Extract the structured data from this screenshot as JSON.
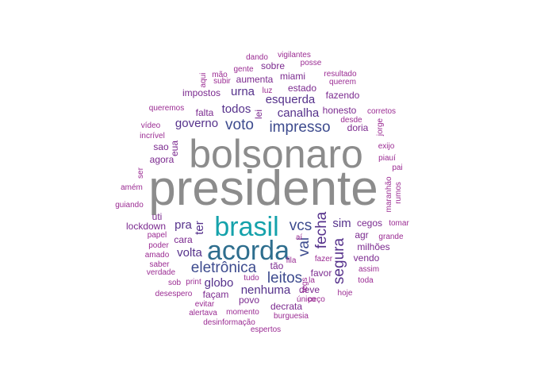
{
  "chart_data": {
    "type": "wordcloud",
    "palette": {
      "gray": "#8c8c8c",
      "teal": "#15a2ab",
      "blue": "#2e6e8e",
      "indigo": "#3d4b8e",
      "purple": "#55318b",
      "violet": "#7b2a8f",
      "magenta": "#9b2c93"
    },
    "words": [
      {
        "text": "presidente",
        "color": "gray",
        "tier": 1
      },
      {
        "text": "bolsonaro",
        "color": "gray",
        "tier": 2
      },
      {
        "text": "acorda",
        "color": "blue",
        "tier": 3
      },
      {
        "text": "brasil",
        "color": "teal",
        "tier": 3
      },
      {
        "text": "impresso",
        "color": "indigo",
        "tier": 4
      },
      {
        "text": "eletrônica",
        "color": "indigo",
        "tier": 4
      },
      {
        "text": "leitos",
        "color": "indigo",
        "tier": 4
      },
      {
        "text": "vcs",
        "color": "indigo",
        "tier": 4
      },
      {
        "text": "voto",
        "color": "indigo",
        "tier": 4
      },
      {
        "text": "vai",
        "color": "indigo",
        "tier": 4
      },
      {
        "text": "fecha",
        "color": "purple",
        "tier": 4
      },
      {
        "text": "segura",
        "color": "purple",
        "tier": 4
      },
      {
        "text": "nenhuma",
        "color": "purple",
        "tier": 5
      },
      {
        "text": "canalha",
        "color": "purple",
        "tier": 5
      },
      {
        "text": "esquerda",
        "color": "purple",
        "tier": 5
      },
      {
        "text": "governo",
        "color": "purple",
        "tier": 5
      },
      {
        "text": "todos",
        "color": "purple",
        "tier": 5
      },
      {
        "text": "urna",
        "color": "purple",
        "tier": 5
      },
      {
        "text": "volta",
        "color": "purple",
        "tier": 5
      },
      {
        "text": "globo",
        "color": "purple",
        "tier": 5
      },
      {
        "text": "pra",
        "color": "purple",
        "tier": 5
      },
      {
        "text": "sim",
        "color": "purple",
        "tier": 5
      },
      {
        "text": "ter",
        "color": "purple",
        "tier": 5
      },
      {
        "text": "estado",
        "color": "violet",
        "tier": 6
      },
      {
        "text": "falta",
        "color": "violet",
        "tier": 6
      },
      {
        "text": "cara",
        "color": "violet",
        "tier": 6
      },
      {
        "text": "miami",
        "color": "violet",
        "tier": 6
      },
      {
        "text": "fazendo",
        "color": "violet",
        "tier": 6
      },
      {
        "text": "impostos",
        "color": "violet",
        "tier": 6
      },
      {
        "text": "aumenta",
        "color": "violet",
        "tier": 6
      },
      {
        "text": "sobre",
        "color": "violet",
        "tier": 6
      },
      {
        "text": "honesto",
        "color": "violet",
        "tier": 6
      },
      {
        "text": "doria",
        "color": "violet",
        "tier": 6
      },
      {
        "text": "agora",
        "color": "violet",
        "tier": 6
      },
      {
        "text": "sao",
        "color": "violet",
        "tier": 6
      },
      {
        "text": "eua",
        "color": "violet",
        "tier": 6
      },
      {
        "text": "cegos",
        "color": "violet",
        "tier": 6
      },
      {
        "text": "agr",
        "color": "violet",
        "tier": 6
      },
      {
        "text": "milhões",
        "color": "violet",
        "tier": 6
      },
      {
        "text": "vendo",
        "color": "violet",
        "tier": 6
      },
      {
        "text": "favor",
        "color": "violet",
        "tier": 6
      },
      {
        "text": "deve",
        "color": "violet",
        "tier": 6
      },
      {
        "text": "decrata",
        "color": "violet",
        "tier": 6
      },
      {
        "text": "povo",
        "color": "violet",
        "tier": 6
      },
      {
        "text": "façam",
        "color": "violet",
        "tier": 6
      },
      {
        "text": "lockdown",
        "color": "violet",
        "tier": 6
      },
      {
        "text": "uti",
        "color": "violet",
        "tier": 6
      },
      {
        "text": "tão",
        "color": "violet",
        "tier": 6
      },
      {
        "text": "lei",
        "color": "violet",
        "tier": 6
      },
      {
        "text": "dando",
        "color": "magenta",
        "tier": 7
      },
      {
        "text": "vigilantes",
        "color": "magenta",
        "tier": 7
      },
      {
        "text": "posse",
        "color": "magenta",
        "tier": 7
      },
      {
        "text": "gente",
        "color": "magenta",
        "tier": 7
      },
      {
        "text": "resultado",
        "color": "magenta",
        "tier": 7
      },
      {
        "text": "mão",
        "color": "magenta",
        "tier": 7
      },
      {
        "text": "aqui",
        "color": "magenta",
        "tier": 7
      },
      {
        "text": "subir",
        "color": "magenta",
        "tier": 7
      },
      {
        "text": "querem",
        "color": "magenta",
        "tier": 7
      },
      {
        "text": "luz",
        "color": "magenta",
        "tier": 7
      },
      {
        "text": "queremos",
        "color": "magenta",
        "tier": 7
      },
      {
        "text": "corretos",
        "color": "magenta",
        "tier": 7
      },
      {
        "text": "desde",
        "color": "magenta",
        "tier": 7
      },
      {
        "text": "jorge",
        "color": "magenta",
        "tier": 7
      },
      {
        "text": "vídeo",
        "color": "magenta",
        "tier": 7
      },
      {
        "text": "incrível",
        "color": "magenta",
        "tier": 7
      },
      {
        "text": "exijo",
        "color": "magenta",
        "tier": 7
      },
      {
        "text": "piauí",
        "color": "magenta",
        "tier": 7
      },
      {
        "text": "pai",
        "color": "magenta",
        "tier": 7
      },
      {
        "text": "ser",
        "color": "magenta",
        "tier": 7
      },
      {
        "text": "amém",
        "color": "magenta",
        "tier": 7
      },
      {
        "text": "maranhão",
        "color": "magenta",
        "tier": 7
      },
      {
        "text": "rumos",
        "color": "magenta",
        "tier": 7
      },
      {
        "text": "guiando",
        "color": "magenta",
        "tier": 7
      },
      {
        "text": "tomar",
        "color": "magenta",
        "tier": 7
      },
      {
        "text": "papel",
        "color": "magenta",
        "tier": 7
      },
      {
        "text": "grande",
        "color": "magenta",
        "tier": 7
      },
      {
        "text": "poder",
        "color": "magenta",
        "tier": 7
      },
      {
        "text": "aí",
        "color": "magenta",
        "tier": 7
      },
      {
        "text": "amado",
        "color": "magenta",
        "tier": 7
      },
      {
        "text": "fila",
        "color": "magenta",
        "tier": 7
      },
      {
        "text": "fazer",
        "color": "magenta",
        "tier": 7
      },
      {
        "text": "assim",
        "color": "magenta",
        "tier": 7
      },
      {
        "text": "saber",
        "color": "magenta",
        "tier": 7
      },
      {
        "text": "verdade",
        "color": "magenta",
        "tier": 7
      },
      {
        "text": "tudo",
        "color": "magenta",
        "tier": 7
      },
      {
        "text": "toda",
        "color": "magenta",
        "tier": 7
      },
      {
        "text": "sob",
        "color": "magenta",
        "tier": 7
      },
      {
        "text": "print",
        "color": "magenta",
        "tier": 7
      },
      {
        "text": "la",
        "color": "magenta",
        "tier": 7
      },
      {
        "text": "tegs",
        "color": "magenta",
        "tier": 7
      },
      {
        "text": "desespero",
        "color": "magenta",
        "tier": 7
      },
      {
        "text": "único",
        "color": "magenta",
        "tier": 7
      },
      {
        "text": "peço",
        "color": "magenta",
        "tier": 7
      },
      {
        "text": "hoje",
        "color": "magenta",
        "tier": 7
      },
      {
        "text": "evitar",
        "color": "magenta",
        "tier": 7
      },
      {
        "text": "alertava",
        "color": "magenta",
        "tier": 7
      },
      {
        "text": "momento",
        "color": "magenta",
        "tier": 7
      },
      {
        "text": "burguesia",
        "color": "magenta",
        "tier": 7
      },
      {
        "text": "desinformação",
        "color": "magenta",
        "tier": 7
      },
      {
        "text": "espertos",
        "color": "magenta",
        "tier": 7
      }
    ]
  }
}
